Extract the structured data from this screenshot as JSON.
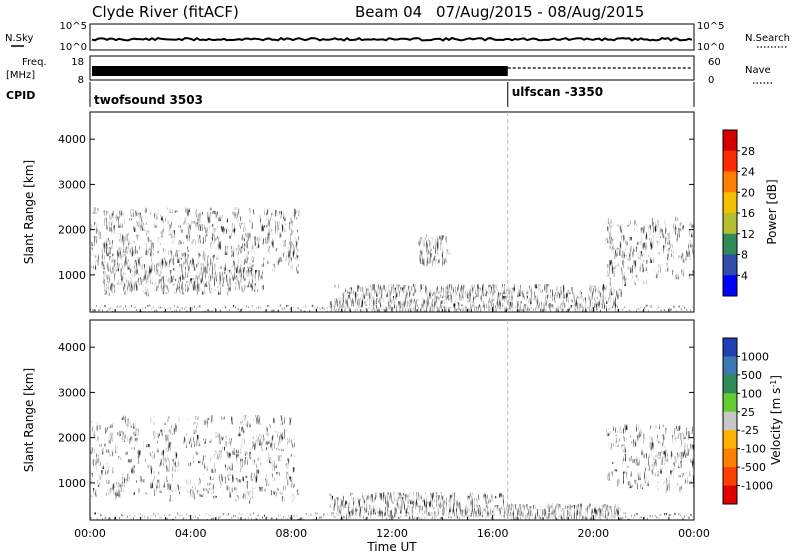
{
  "header": {
    "station": "Clyde River (fitACF)",
    "beam_label": "Beam 04",
    "date_range": "07/Aug/2015 - 08/Aug/2015"
  },
  "summary_panels": {
    "nsky_label": "N.Sky",
    "nsky_ticks": [
      "10^5",
      "10^0"
    ],
    "nsearch_label": "N.Search",
    "nsearch_ticks": [
      "10^5",
      "10^0"
    ],
    "freq_label_line1": "Freq.",
    "freq_label_line2": "[MHz]",
    "freq_ticks": [
      "18",
      "8"
    ],
    "nave_label": "Nave",
    "nave_ticks": [
      "60",
      "0"
    ],
    "cpid_label": "CPID",
    "cpid_segments": [
      {
        "name": "twofsound 3503",
        "start_hour": 0
      },
      {
        "name": "ulfscan -3350",
        "start_hour": 16.6
      }
    ]
  },
  "chart_data": [
    {
      "type": "heatmap",
      "title": "",
      "xlabel": "Time UT",
      "ylabel": "Slant Range [km]",
      "xlim": [
        0,
        24
      ],
      "ylim": [
        180,
        4600
      ],
      "x_tick_labels": [
        "00:00",
        "04:00",
        "08:00",
        "12:00",
        "16:00",
        "20:00",
        "00:00"
      ],
      "y_tick_labels": [
        "1000",
        "2000",
        "3000",
        "4000"
      ],
      "colorbar_label": "Power [dB]",
      "colorbar_ticks": [
        "28",
        "24",
        "20",
        "16",
        "12",
        "8",
        "4"
      ],
      "colorbar_colors": [
        "#d40000",
        "#ff2a00",
        "#ff7f00",
        "#f5c000",
        "#b4c030",
        "#2e8b57",
        "#2e4ca8",
        "#0000ff"
      ],
      "scatter_regions": [
        {
          "t0": 0.0,
          "t1": 8.2,
          "r0": 1200,
          "r1": 2500,
          "level": "medium"
        },
        {
          "t0": 0.5,
          "t1": 6.8,
          "r0": 700,
          "r1": 1300,
          "level": "high"
        },
        {
          "t0": 9.5,
          "t1": 21.0,
          "r0": 250,
          "r1": 800,
          "level": "high"
        },
        {
          "t0": 13.0,
          "t1": 14.2,
          "r0": 1300,
          "r1": 1900,
          "level": "high"
        },
        {
          "t0": 20.5,
          "t1": 24.0,
          "r0": 900,
          "r1": 2300,
          "level": "high"
        }
      ]
    },
    {
      "type": "heatmap",
      "title": "",
      "xlabel": "Time UT",
      "ylabel": "Slant Range [km]",
      "xlim": [
        0,
        24
      ],
      "ylim": [
        180,
        4600
      ],
      "x_tick_labels": [
        "00:00",
        "04:00",
        "08:00",
        "12:00",
        "16:00",
        "20:00",
        "00:00"
      ],
      "y_tick_labels": [
        "1000",
        "2000",
        "3000",
        "4000"
      ],
      "colorbar_label": "Velocity [m s^-1]",
      "colorbar_ticks": [
        "1000",
        "500",
        "100",
        "25",
        "-25",
        "-100",
        "-500",
        "-1000"
      ],
      "colorbar_colors": [
        "#1f3fb4",
        "#3c78b4",
        "#2e8b57",
        "#66cc33",
        "#c8c8c8",
        "#ffb000",
        "#ff7f00",
        "#ff4000",
        "#e00000"
      ],
      "scatter_regions": [
        {
          "t0": 0.0,
          "t1": 8.2,
          "r0": 700,
          "r1": 2500,
          "level": "negative"
        },
        {
          "t0": 9.5,
          "t1": 16.5,
          "r0": 350,
          "r1": 800,
          "level": "negative"
        },
        {
          "t0": 16.5,
          "t1": 21.0,
          "r0": 300,
          "r1": 550,
          "level": "positive"
        },
        {
          "t0": 20.5,
          "t1": 24.0,
          "r0": 900,
          "r1": 2300,
          "level": "negative"
        }
      ]
    }
  ],
  "time_axis_label": "Time UT"
}
